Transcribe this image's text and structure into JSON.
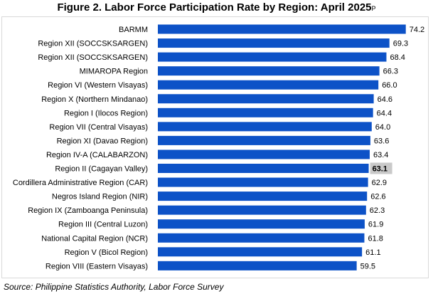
{
  "title": "Figure 2. Labor Force Participation Rate by Region: April 2025",
  "title_superscript": "P",
  "source": "Source: Philippine Statistics Authority, Labor Force Survey",
  "colors": {
    "bar": "#0d52c7",
    "highlight_bg": "#c9c9c9",
    "label": "#000000"
  },
  "chart_data": {
    "type": "bar",
    "orientation": "horizontal",
    "title": "Figure 2. Labor Force Participation Rate by Region: April 2025",
    "xlabel": "",
    "ylabel": "",
    "xlim": [
      0,
      75
    ],
    "grid": false,
    "legend": "none",
    "highlighted_category": "Region II (Cagayan Valley)",
    "categories": [
      "BARMM",
      "Region XII (SOCCSKSARGEN)",
      "Region XII (SOCCSKSARGEN)",
      "MIMAROPA Region",
      "Region VI (Western Visayas)",
      "Region X (Northern Mindanao)",
      "Region I (Ilocos Region)",
      "Region VII (Central Visayas)",
      "Region XI (Davao Region)",
      "Region IV-A (CALABARZON)",
      "Region II (Cagayan Valley)",
      "Cordillera Administrative Region (CAR)",
      "Negros Island Region (NIR)",
      "Region IX (Zamboanga Peninsula)",
      "Region III (Central Luzon)",
      "National Capital Region (NCR)",
      "Region V (Bicol Region)",
      "Region VIII (Eastern Visayas)"
    ],
    "values": [
      74.2,
      69.3,
      68.4,
      66.3,
      66.0,
      64.6,
      64.4,
      64.0,
      63.6,
      63.4,
      63.1,
      62.9,
      62.6,
      62.3,
      61.9,
      61.8,
      61.1,
      59.5
    ],
    "value_labels": [
      "74.2",
      "69.3",
      "68.4",
      "66.3",
      "66.0",
      "64.6",
      "64.4",
      "64.0",
      "63.6",
      "63.4",
      "63.1",
      "62.9",
      "62.6",
      "62.3",
      "61.9",
      "61.8",
      "61.1",
      "59.5"
    ]
  }
}
